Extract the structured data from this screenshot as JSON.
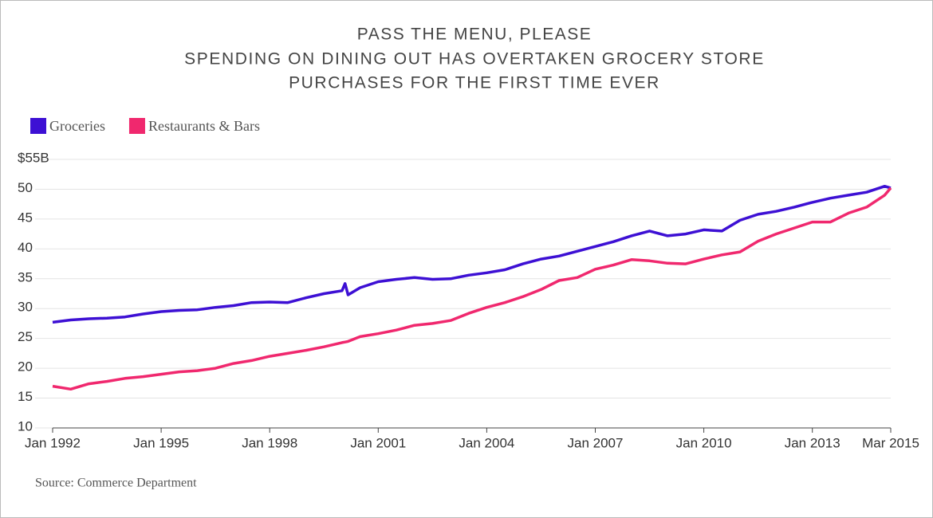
{
  "chart_data": {
    "type": "line",
    "title": "PASS THE MENU, PLEASE",
    "subtitle": [
      "SPENDING ON DINING OUT HAS OVERTAKEN GROCERY STORE",
      "PURCHASES FOR THE FIRST TIME EVER"
    ],
    "source": "Source: Commerce Department",
    "x": [
      "Jan 1992",
      "Jul 1992",
      "Jan 1993",
      "Jul 1993",
      "Jan 1994",
      "Jul 1994",
      "Jan 1995",
      "Jul 1995",
      "Jan 1996",
      "Jul 1996",
      "Jan 1997",
      "Jul 1997",
      "Jan 1998",
      "Jul 1998",
      "Jan 1999",
      "Jul 1999",
      "Jan 2000",
      "Feb 2000",
      "Mar 2000",
      "Jul 2000",
      "Jan 2001",
      "Jul 2001",
      "Jan 2002",
      "Jul 2002",
      "Jan 2003",
      "Jul 2003",
      "Jan 2004",
      "Jul 2004",
      "Jan 2005",
      "Jul 2005",
      "Jan 2006",
      "Jul 2006",
      "Jan 2007",
      "Jul 2007",
      "Jan 2008",
      "Jul 2008",
      "Jan 2009",
      "Jul 2009",
      "Jan 2010",
      "Jul 2010",
      "Jan 2011",
      "Jul 2011",
      "Jan 2012",
      "Jul 2012",
      "Jan 2013",
      "Jul 2013",
      "Jan 2014",
      "Jul 2014",
      "Jan 2015",
      "Mar 2015"
    ],
    "series": [
      {
        "name": "Groceries",
        "color": "#3d10d4",
        "values": [
          27.7,
          28.1,
          28.3,
          28.4,
          28.6,
          29.1,
          29.5,
          29.7,
          29.8,
          30.2,
          30.5,
          31.0,
          31.1,
          31.0,
          31.8,
          32.5,
          33.0,
          34.2,
          32.3,
          33.5,
          34.5,
          34.9,
          35.2,
          34.9,
          35.0,
          35.6,
          36.0,
          36.5,
          37.5,
          38.3,
          38.8,
          39.6,
          40.4,
          41.2,
          42.2,
          43.0,
          42.2,
          42.5,
          43.2,
          43.0,
          44.8,
          45.8,
          46.3,
          47.0,
          47.8,
          48.5,
          49.0,
          49.5,
          50.5,
          50.2
        ]
      },
      {
        "name": "Restaurants & Bars",
        "color": "#f0286e",
        "values": [
          17.0,
          16.5,
          17.4,
          17.8,
          18.3,
          18.6,
          19.0,
          19.4,
          19.6,
          20.0,
          20.8,
          21.3,
          22.0,
          22.5,
          23.0,
          23.6,
          24.3,
          24.4,
          24.5,
          25.3,
          25.8,
          26.4,
          27.2,
          27.5,
          28.0,
          29.2,
          30.2,
          31.0,
          32.0,
          33.2,
          34.7,
          35.2,
          36.6,
          37.3,
          38.2,
          38.0,
          37.6,
          37.5,
          38.3,
          39.0,
          39.5,
          41.3,
          42.5,
          43.5,
          44.5,
          44.5,
          46.0,
          47.0,
          49.0,
          50.2
        ]
      }
    ],
    "xticks": [
      "Jan 1992",
      "Jan 1995",
      "Jan 1998",
      "Jan 2001",
      "Jan 2004",
      "Jan 2007",
      "Jan 2010",
      "Jan 2013",
      "Mar 2015"
    ],
    "ylim": [
      10,
      55
    ],
    "yticks": [
      10,
      15,
      20,
      25,
      30,
      35,
      40,
      45,
      50,
      {
        "value": 55,
        "label": "$55B"
      }
    ],
    "grid": true
  }
}
